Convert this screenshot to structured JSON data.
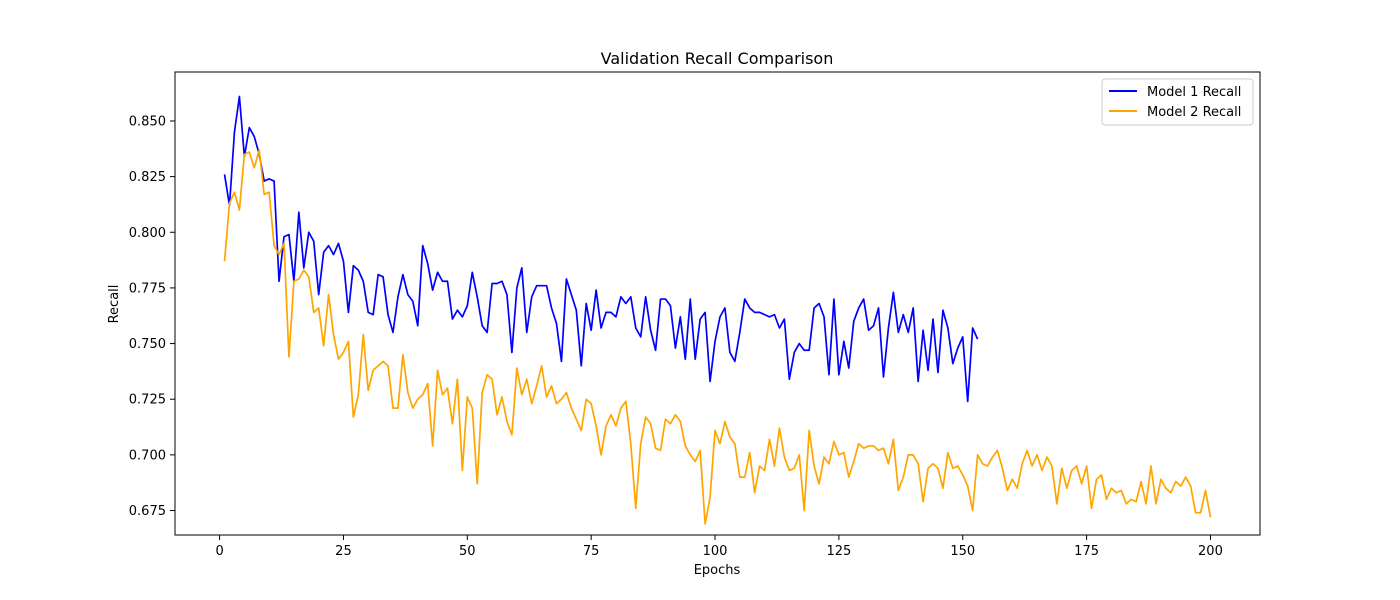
{
  "chart_data": {
    "type": "line",
    "title": "Validation Recall Comparison",
    "xlabel": "Epochs",
    "ylabel": "Recall",
    "xlim": [
      -9,
      210
    ],
    "ylim": [
      0.664,
      0.872
    ],
    "xticks": [
      0,
      25,
      50,
      75,
      100,
      125,
      150,
      175,
      200
    ],
    "yticks": [
      0.675,
      0.7,
      0.725,
      0.75,
      0.775,
      0.8,
      0.825,
      0.85
    ],
    "grid": false,
    "legend_position": "top-right",
    "series": [
      {
        "name": "Model 1 Recall",
        "color": "#0000ff",
        "x_start": 1,
        "values": [
          0.826,
          0.812,
          0.845,
          0.861,
          0.834,
          0.847,
          0.843,
          0.835,
          0.823,
          0.824,
          0.823,
          0.778,
          0.798,
          0.799,
          0.778,
          0.809,
          0.784,
          0.8,
          0.796,
          0.772,
          0.791,
          0.794,
          0.79,
          0.795,
          0.787,
          0.764,
          0.785,
          0.783,
          0.778,
          0.764,
          0.763,
          0.781,
          0.78,
          0.763,
          0.755,
          0.771,
          0.781,
          0.772,
          0.769,
          0.758,
          0.794,
          0.786,
          0.774,
          0.782,
          0.778,
          0.778,
          0.761,
          0.765,
          0.762,
          0.767,
          0.782,
          0.771,
          0.758,
          0.755,
          0.777,
          0.777,
          0.778,
          0.772,
          0.746,
          0.775,
          0.784,
          0.755,
          0.771,
          0.776,
          0.776,
          0.776,
          0.766,
          0.759,
          0.742,
          0.779,
          0.772,
          0.765,
          0.74,
          0.768,
          0.756,
          0.774,
          0.757,
          0.764,
          0.764,
          0.762,
          0.771,
          0.768,
          0.771,
          0.757,
          0.753,
          0.771,
          0.756,
          0.747,
          0.77,
          0.77,
          0.767,
          0.748,
          0.762,
          0.743,
          0.77,
          0.743,
          0.761,
          0.764,
          0.733,
          0.751,
          0.762,
          0.766,
          0.746,
          0.742,
          0.755,
          0.77,
          0.766,
          0.764,
          0.764,
          0.763,
          0.762,
          0.763,
          0.757,
          0.761,
          0.734,
          0.746,
          0.75,
          0.747,
          0.747,
          0.766,
          0.768,
          0.762,
          0.736,
          0.77,
          0.736,
          0.751,
          0.739,
          0.76,
          0.766,
          0.77,
          0.756,
          0.758,
          0.766,
          0.735,
          0.757,
          0.773,
          0.755,
          0.763,
          0.755,
          0.766,
          0.733,
          0.756,
          0.738,
          0.761,
          0.737,
          0.765,
          0.757,
          0.741,
          0.748,
          0.753,
          0.724,
          0.757,
          0.752
        ]
      },
      {
        "name": "Model 2 Recall",
        "color": "#ffa500",
        "x_start": 1,
        "values": [
          0.787,
          0.813,
          0.818,
          0.81,
          0.835,
          0.836,
          0.829,
          0.837,
          0.817,
          0.818,
          0.794,
          0.79,
          0.795,
          0.744,
          0.778,
          0.779,
          0.783,
          0.78,
          0.764,
          0.766,
          0.749,
          0.772,
          0.754,
          0.743,
          0.746,
          0.751,
          0.717,
          0.727,
          0.754,
          0.729,
          0.738,
          0.74,
          0.742,
          0.74,
          0.721,
          0.721,
          0.745,
          0.728,
          0.721,
          0.725,
          0.727,
          0.732,
          0.704,
          0.738,
          0.727,
          0.73,
          0.714,
          0.734,
          0.693,
          0.726,
          0.721,
          0.687,
          0.728,
          0.736,
          0.734,
          0.718,
          0.726,
          0.715,
          0.709,
          0.739,
          0.727,
          0.734,
          0.723,
          0.731,
          0.74,
          0.726,
          0.731,
          0.723,
          0.725,
          0.728,
          0.721,
          0.716,
          0.711,
          0.725,
          0.723,
          0.713,
          0.7,
          0.713,
          0.718,
          0.713,
          0.721,
          0.724,
          0.705,
          0.676,
          0.705,
          0.717,
          0.714,
          0.703,
          0.702,
          0.716,
          0.714,
          0.718,
          0.715,
          0.704,
          0.7,
          0.697,
          0.702,
          0.669,
          0.681,
          0.711,
          0.705,
          0.715,
          0.708,
          0.705,
          0.69,
          0.69,
          0.701,
          0.683,
          0.695,
          0.693,
          0.707,
          0.695,
          0.712,
          0.699,
          0.693,
          0.694,
          0.7,
          0.675,
          0.711,
          0.695,
          0.687,
          0.699,
          0.696,
          0.706,
          0.7,
          0.701,
          0.69,
          0.697,
          0.705,
          0.703,
          0.704,
          0.704,
          0.702,
          0.703,
          0.696,
          0.707,
          0.684,
          0.69,
          0.7,
          0.7,
          0.696,
          0.679,
          0.694,
          0.696,
          0.694,
          0.685,
          0.701,
          0.694,
          0.695,
          0.691,
          0.686,
          0.675,
          0.7,
          0.696,
          0.695,
          0.699,
          0.702,
          0.694,
          0.684,
          0.689,
          0.685,
          0.696,
          0.702,
          0.695,
          0.7,
          0.693,
          0.699,
          0.695,
          0.678,
          0.694,
          0.685,
          0.693,
          0.695,
          0.687,
          0.695,
          0.676,
          0.689,
          0.691,
          0.68,
          0.685,
          0.683,
          0.684,
          0.678,
          0.68,
          0.679,
          0.688,
          0.678,
          0.695,
          0.678,
          0.689,
          0.685,
          0.683,
          0.688,
          0.686,
          0.69,
          0.686,
          0.674,
          0.674,
          0.684,
          0.672
        ]
      }
    ]
  }
}
